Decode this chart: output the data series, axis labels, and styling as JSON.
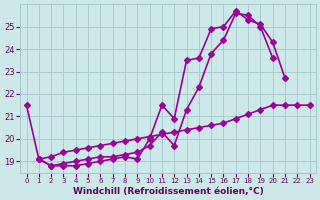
{
  "x": [
    0,
    1,
    2,
    3,
    4,
    5,
    6,
    7,
    8,
    9,
    10,
    11,
    12,
    13,
    14,
    15,
    16,
    17,
    18,
    19,
    20,
    21,
    22,
    23
  ],
  "line1": [
    21.5,
    19.1,
    18.8,
    18.8,
    18.8,
    18.9,
    19.0,
    19.1,
    19.2,
    19.1,
    20.0,
    21.5,
    20.9,
    23.5,
    23.6,
    24.9,
    25.0,
    25.7,
    25.3,
    25.1,
    24.3,
    22.7,
    null,
    null
  ],
  "line2": [
    null,
    19.1,
    18.8,
    18.9,
    19.0,
    19.1,
    19.2,
    19.2,
    19.3,
    19.4,
    19.7,
    20.3,
    19.7,
    21.3,
    22.3,
    23.8,
    24.4,
    25.6,
    25.5,
    25.0,
    23.6,
    null,
    null,
    null
  ],
  "line3": [
    null,
    19.1,
    19.2,
    19.4,
    19.5,
    19.6,
    19.7,
    19.8,
    19.9,
    20.0,
    20.1,
    20.2,
    20.3,
    20.4,
    20.5,
    20.6,
    20.7,
    20.9,
    21.1,
    21.3,
    21.5,
    21.5,
    21.5,
    21.5
  ],
  "ylim": [
    18.5,
    26.0
  ],
  "yticks": [
    19,
    20,
    21,
    22,
    23,
    24,
    25
  ],
  "xlim": [
    -0.5,
    23.5
  ],
  "xticks": [
    0,
    1,
    2,
    3,
    4,
    5,
    6,
    7,
    8,
    9,
    10,
    11,
    12,
    13,
    14,
    15,
    16,
    17,
    18,
    19,
    20,
    21,
    22,
    23
  ],
  "line_color": "#990099",
  "bg_color": "#cce8e8",
  "grid_color": "#aacccc",
  "xlabel": "Windchill (Refroidissement éolien,°C)",
  "xlabel_color": "#660066",
  "tick_color": "#660066",
  "marker": "D",
  "markersize": 3,
  "linewidth": 1.2
}
